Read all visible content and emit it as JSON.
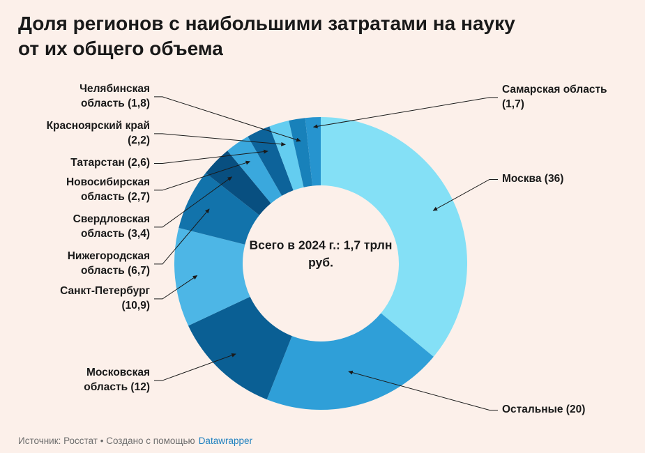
{
  "page": {
    "background": "#fcf0ea"
  },
  "footer": {
    "source": "Источник: Росстат • Создано с помощью",
    "link": "Datawrapper"
  },
  "chart_data": {
    "type": "pie",
    "subtype": "donut",
    "title": "Доля регионов с наибольшими затратами на науку от их общего объема",
    "title_lines": [
      "Доля регионов с наибольшими затратами на науку",
      "от их общего объема"
    ],
    "center_label": "Всего в 2024 г.: 1,7 трлн руб.",
    "layout": {
      "start_angle_deg": 0,
      "direction": "clockwise",
      "donut": true,
      "legend": "none",
      "labels": "outside-with-leader-lines"
    },
    "slices": [
      {
        "id": "moskva",
        "name": "Москва",
        "value": 36,
        "display": "Москва (36)",
        "color": "#84e0f6",
        "label_lines": [
          "Москва (36)"
        ]
      },
      {
        "id": "ostalnye",
        "name": "Остальные",
        "value": 20,
        "display": "Остальные (20)",
        "color": "#2f9fd8",
        "label_lines": [
          "Остальные (20)"
        ]
      },
      {
        "id": "moskovskaya-oblast",
        "name": "Московская область",
        "value": 12,
        "display": "Московская область (12)",
        "color": "#0a5f94",
        "label_lines": [
          "Московская",
          "область (12)"
        ]
      },
      {
        "id": "sankt-peterburg",
        "name": "Санкт-Петербург",
        "value": 10.9,
        "display": "Санкт-Петербург (10,9)",
        "color": "#4db6e6",
        "label_lines": [
          "Санкт-Петербург",
          "(10,9)"
        ]
      },
      {
        "id": "nizhegorodskaya-oblast",
        "name": "Нижегородская область",
        "value": 6.7,
        "display": "Нижегородская область (6,7)",
        "color": "#1273ab",
        "label_lines": [
          "Нижегородская",
          "область (6,7)"
        ]
      },
      {
        "id": "sverdlovskaya-oblast",
        "name": "Свердловская область",
        "value": 3.4,
        "display": "Свердловская область (3,4)",
        "color": "#084f80",
        "label_lines": [
          "Свердловская",
          "область (3,4)"
        ]
      },
      {
        "id": "novosibirskaya-oblast",
        "name": "Новосибирская область",
        "value": 2.7,
        "display": "Новосибирская область (2,7)",
        "color": "#3aa8dd",
        "label_lines": [
          "Новосибирская",
          "область (2,7)"
        ]
      },
      {
        "id": "tatarstan",
        "name": "Татарстан",
        "value": 2.6,
        "display": "Татарстан (2,6)",
        "color": "#0d639a",
        "label_lines": [
          "Татарстан (2,6)"
        ]
      },
      {
        "id": "krasnoyarskiy-kray",
        "name": "Красноярский край",
        "value": 2.2,
        "display": "Красноярский край (2,2)",
        "color": "#64cdf0",
        "label_lines": [
          "Красноярский край",
          "(2,2)"
        ]
      },
      {
        "id": "chelyabinskaya-oblast",
        "name": "Челябинская область",
        "value": 1.8,
        "display": "Челябинская область (1,8)",
        "color": "#1881ba",
        "label_lines": [
          "Челябинская",
          "область (1,8)"
        ]
      },
      {
        "id": "samarskaya-oblast",
        "name": "Самарская область",
        "value": 1.7,
        "display": "Самарская область (1,7)",
        "color": "#2694cf",
        "label_lines": [
          "Самарская область",
          "(1,7)"
        ]
      }
    ]
  }
}
